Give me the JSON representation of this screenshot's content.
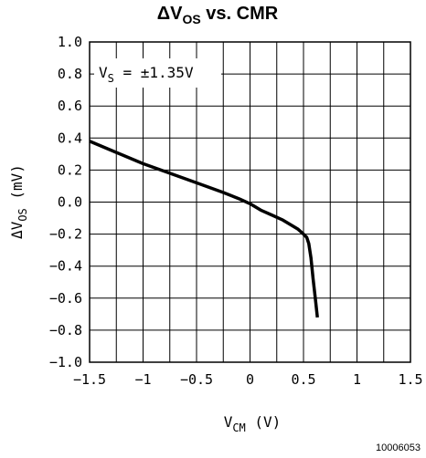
{
  "chart_data": {
    "type": "line",
    "title": {
      "prefix": "ΔV",
      "sub": "OS",
      "suffix": " vs. CMR"
    },
    "xlabel": {
      "main": "V",
      "sub": "CM",
      "unit": " (V)"
    },
    "ylabel": {
      "main": "ΔV",
      "sub": "OS",
      "unit": " (mV)"
    },
    "annotation": {
      "main": "V",
      "sub": "S",
      "rest": " = ±1.35V"
    },
    "figure_id": "10006053",
    "xlim": [
      -1.5,
      1.5
    ],
    "ylim": [
      -1.0,
      1.0
    ],
    "xticks": [
      "-1.5",
      "-1",
      "-0.5",
      "0",
      "0.5",
      "1",
      "1.5"
    ],
    "yticks": [
      "1.0",
      "0.8",
      "0.6",
      "0.4",
      "0.2",
      "0.0",
      "-0.2",
      "-0.4",
      "-0.6",
      "-0.8",
      "-1.0"
    ],
    "grid": true,
    "series": [
      {
        "color": "#000000",
        "x": [
          -1.5,
          -1.25,
          -1.0,
          -0.75,
          -0.5,
          -0.25,
          -0.1,
          0.0,
          0.1,
          0.2,
          0.3,
          0.4,
          0.45,
          0.5,
          0.53,
          0.55,
          0.57,
          0.59,
          0.61,
          0.63
        ],
        "y": [
          0.38,
          0.31,
          0.24,
          0.18,
          0.12,
          0.06,
          0.02,
          -0.01,
          -0.05,
          -0.08,
          -0.11,
          -0.15,
          -0.17,
          -0.2,
          -0.22,
          -0.26,
          -0.35,
          -0.48,
          -0.6,
          -0.72
        ]
      }
    ]
  }
}
